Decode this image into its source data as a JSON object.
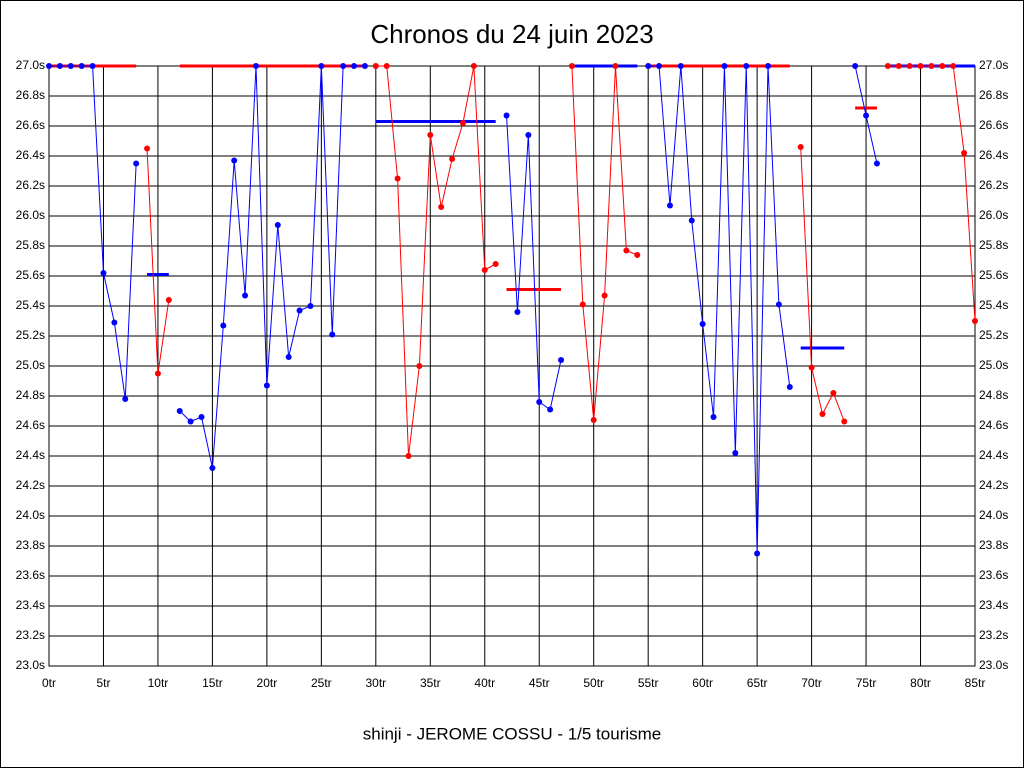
{
  "chart_data": {
    "type": "line",
    "title": "Chronos du 24 juin 2023",
    "footer": "shinji - JEROME COSSU - 1/5 tourisme",
    "xlim": [
      0,
      85
    ],
    "ylim": [
      23.0,
      27.0
    ],
    "xticks": [
      {
        "value": 0,
        "label": "0tr"
      },
      {
        "value": 5,
        "label": "5tr"
      },
      {
        "value": 10,
        "label": "10tr"
      },
      {
        "value": 15,
        "label": "15tr"
      },
      {
        "value": 20,
        "label": "20tr"
      },
      {
        "value": 25,
        "label": "25tr"
      },
      {
        "value": 30,
        "label": "30tr"
      },
      {
        "value": 35,
        "label": "35tr"
      },
      {
        "value": 40,
        "label": "40tr"
      },
      {
        "value": 45,
        "label": "45tr"
      },
      {
        "value": 50,
        "label": "50tr"
      },
      {
        "value": 55,
        "label": "55tr"
      },
      {
        "value": 60,
        "label": "60tr"
      },
      {
        "value": 65,
        "label": "65tr"
      },
      {
        "value": 70,
        "label": "70tr"
      },
      {
        "value": 75,
        "label": "75tr"
      },
      {
        "value": 80,
        "label": "80tr"
      },
      {
        "value": 85,
        "label": "85tr"
      }
    ],
    "yticks": [
      {
        "value": 23.0,
        "label": "23.0s"
      },
      {
        "value": 23.2,
        "label": "23.2s"
      },
      {
        "value": 23.4,
        "label": "23.4s"
      },
      {
        "value": 23.6,
        "label": "23.6s"
      },
      {
        "value": 23.8,
        "label": "23.8s"
      },
      {
        "value": 24.0,
        "label": "24.0s"
      },
      {
        "value": 24.2,
        "label": "24.2s"
      },
      {
        "value": 24.4,
        "label": "24.4s"
      },
      {
        "value": 24.6,
        "label": "24.6s"
      },
      {
        "value": 24.8,
        "label": "24.8s"
      },
      {
        "value": 25.0,
        "label": "25.0s"
      },
      {
        "value": 25.2,
        "label": "25.2s"
      },
      {
        "value": 25.4,
        "label": "25.4s"
      },
      {
        "value": 25.6,
        "label": "25.6s"
      },
      {
        "value": 25.8,
        "label": "25.8s"
      },
      {
        "value": 26.0,
        "label": "26.0s"
      },
      {
        "value": 26.2,
        "label": "26.2s"
      },
      {
        "value": 26.4,
        "label": "26.4s"
      },
      {
        "value": 26.6,
        "label": "26.6s"
      },
      {
        "value": 26.8,
        "label": "26.8s"
      },
      {
        "value": 27.0,
        "label": "27.0s"
      }
    ],
    "grid": true,
    "series": [
      {
        "color": "#0000ff",
        "x": [
          0,
          1,
          2,
          3,
          4,
          5,
          6,
          7,
          8
        ],
        "values": [
          27.0,
          27.0,
          27.0,
          27.0,
          27.0,
          25.62,
          25.29,
          24.78,
          26.35
        ]
      },
      {
        "color": "#ff0000",
        "x": [
          9,
          10,
          11
        ],
        "values": [
          26.45,
          24.95,
          25.44
        ]
      },
      {
        "color": "#0000ff",
        "x": [
          12,
          13,
          14,
          15,
          16,
          17,
          18,
          19,
          20,
          21,
          22,
          23,
          24,
          25,
          26,
          27,
          28,
          29
        ],
        "values": [
          24.7,
          24.63,
          24.66,
          24.32,
          25.27,
          26.37,
          25.47,
          27.0,
          24.87,
          25.94,
          25.06,
          25.37,
          25.4,
          27.0,
          25.21,
          27.0,
          27.0,
          27.0
        ]
      },
      {
        "color": "#ff0000",
        "x": [
          30,
          31,
          32,
          33,
          34,
          35,
          36,
          37,
          38,
          39,
          40,
          41
        ],
        "values": [
          27.0,
          27.0,
          26.25,
          24.4,
          25.0,
          26.54,
          26.06,
          26.38,
          26.62,
          27.0,
          25.64,
          25.68
        ]
      },
      {
        "color": "#0000ff",
        "x": [
          42,
          43,
          44,
          45,
          46,
          47
        ],
        "values": [
          26.67,
          25.36,
          26.54,
          24.76,
          24.71,
          25.04
        ]
      },
      {
        "color": "#ff0000",
        "x": [
          48,
          49,
          50,
          51,
          52,
          53,
          54
        ],
        "values": [
          27.0,
          25.41,
          24.64,
          25.47,
          27.0,
          25.77,
          25.74
        ]
      },
      {
        "color": "#0000ff",
        "x": [
          55,
          56,
          57,
          58,
          59,
          60,
          61,
          62,
          63,
          64,
          65,
          66,
          67,
          68
        ],
        "values": [
          27.0,
          27.0,
          26.07,
          27.0,
          25.97,
          25.28,
          24.66,
          27.0,
          24.42,
          27.0,
          23.75,
          27.0,
          25.41,
          24.86
        ]
      },
      {
        "color": "#ff0000",
        "x": [
          69,
          70,
          71,
          72,
          73
        ],
        "values": [
          26.46,
          24.99,
          24.68,
          24.82,
          24.63
        ]
      },
      {
        "color": "#0000ff",
        "x": [
          74,
          75,
          76
        ],
        "values": [
          27.0,
          26.67,
          26.35
        ]
      },
      {
        "color": "#ff0000",
        "x": [
          77,
          78,
          79,
          80,
          81,
          82,
          83,
          84,
          85
        ],
        "values": [
          27.0,
          27.0,
          27.0,
          27.0,
          27.0,
          27.0,
          27.0,
          26.42,
          25.3
        ]
      }
    ],
    "averages": [
      {
        "color": "#ff0000",
        "x": [
          0,
          8
        ],
        "value": 27.0
      },
      {
        "color": "#0000ff",
        "x": [
          9,
          11
        ],
        "value": 25.61
      },
      {
        "color": "#ff0000",
        "x": [
          12,
          29
        ],
        "value": 27.0
      },
      {
        "color": "#0000ff",
        "x": [
          30,
          41
        ],
        "value": 26.63
      },
      {
        "color": "#ff0000",
        "x": [
          42,
          47
        ],
        "value": 25.51
      },
      {
        "color": "#0000ff",
        "x": [
          48,
          54
        ],
        "value": 27.0
      },
      {
        "color": "#ff0000",
        "x": [
          55,
          68
        ],
        "value": 27.0
      },
      {
        "color": "#0000ff",
        "x": [
          69,
          73
        ],
        "value": 25.12
      },
      {
        "color": "#ff0000",
        "x": [
          74,
          76
        ],
        "value": 26.72
      },
      {
        "color": "#0000ff",
        "x": [
          77,
          85
        ],
        "value": 27.0
      }
    ]
  }
}
